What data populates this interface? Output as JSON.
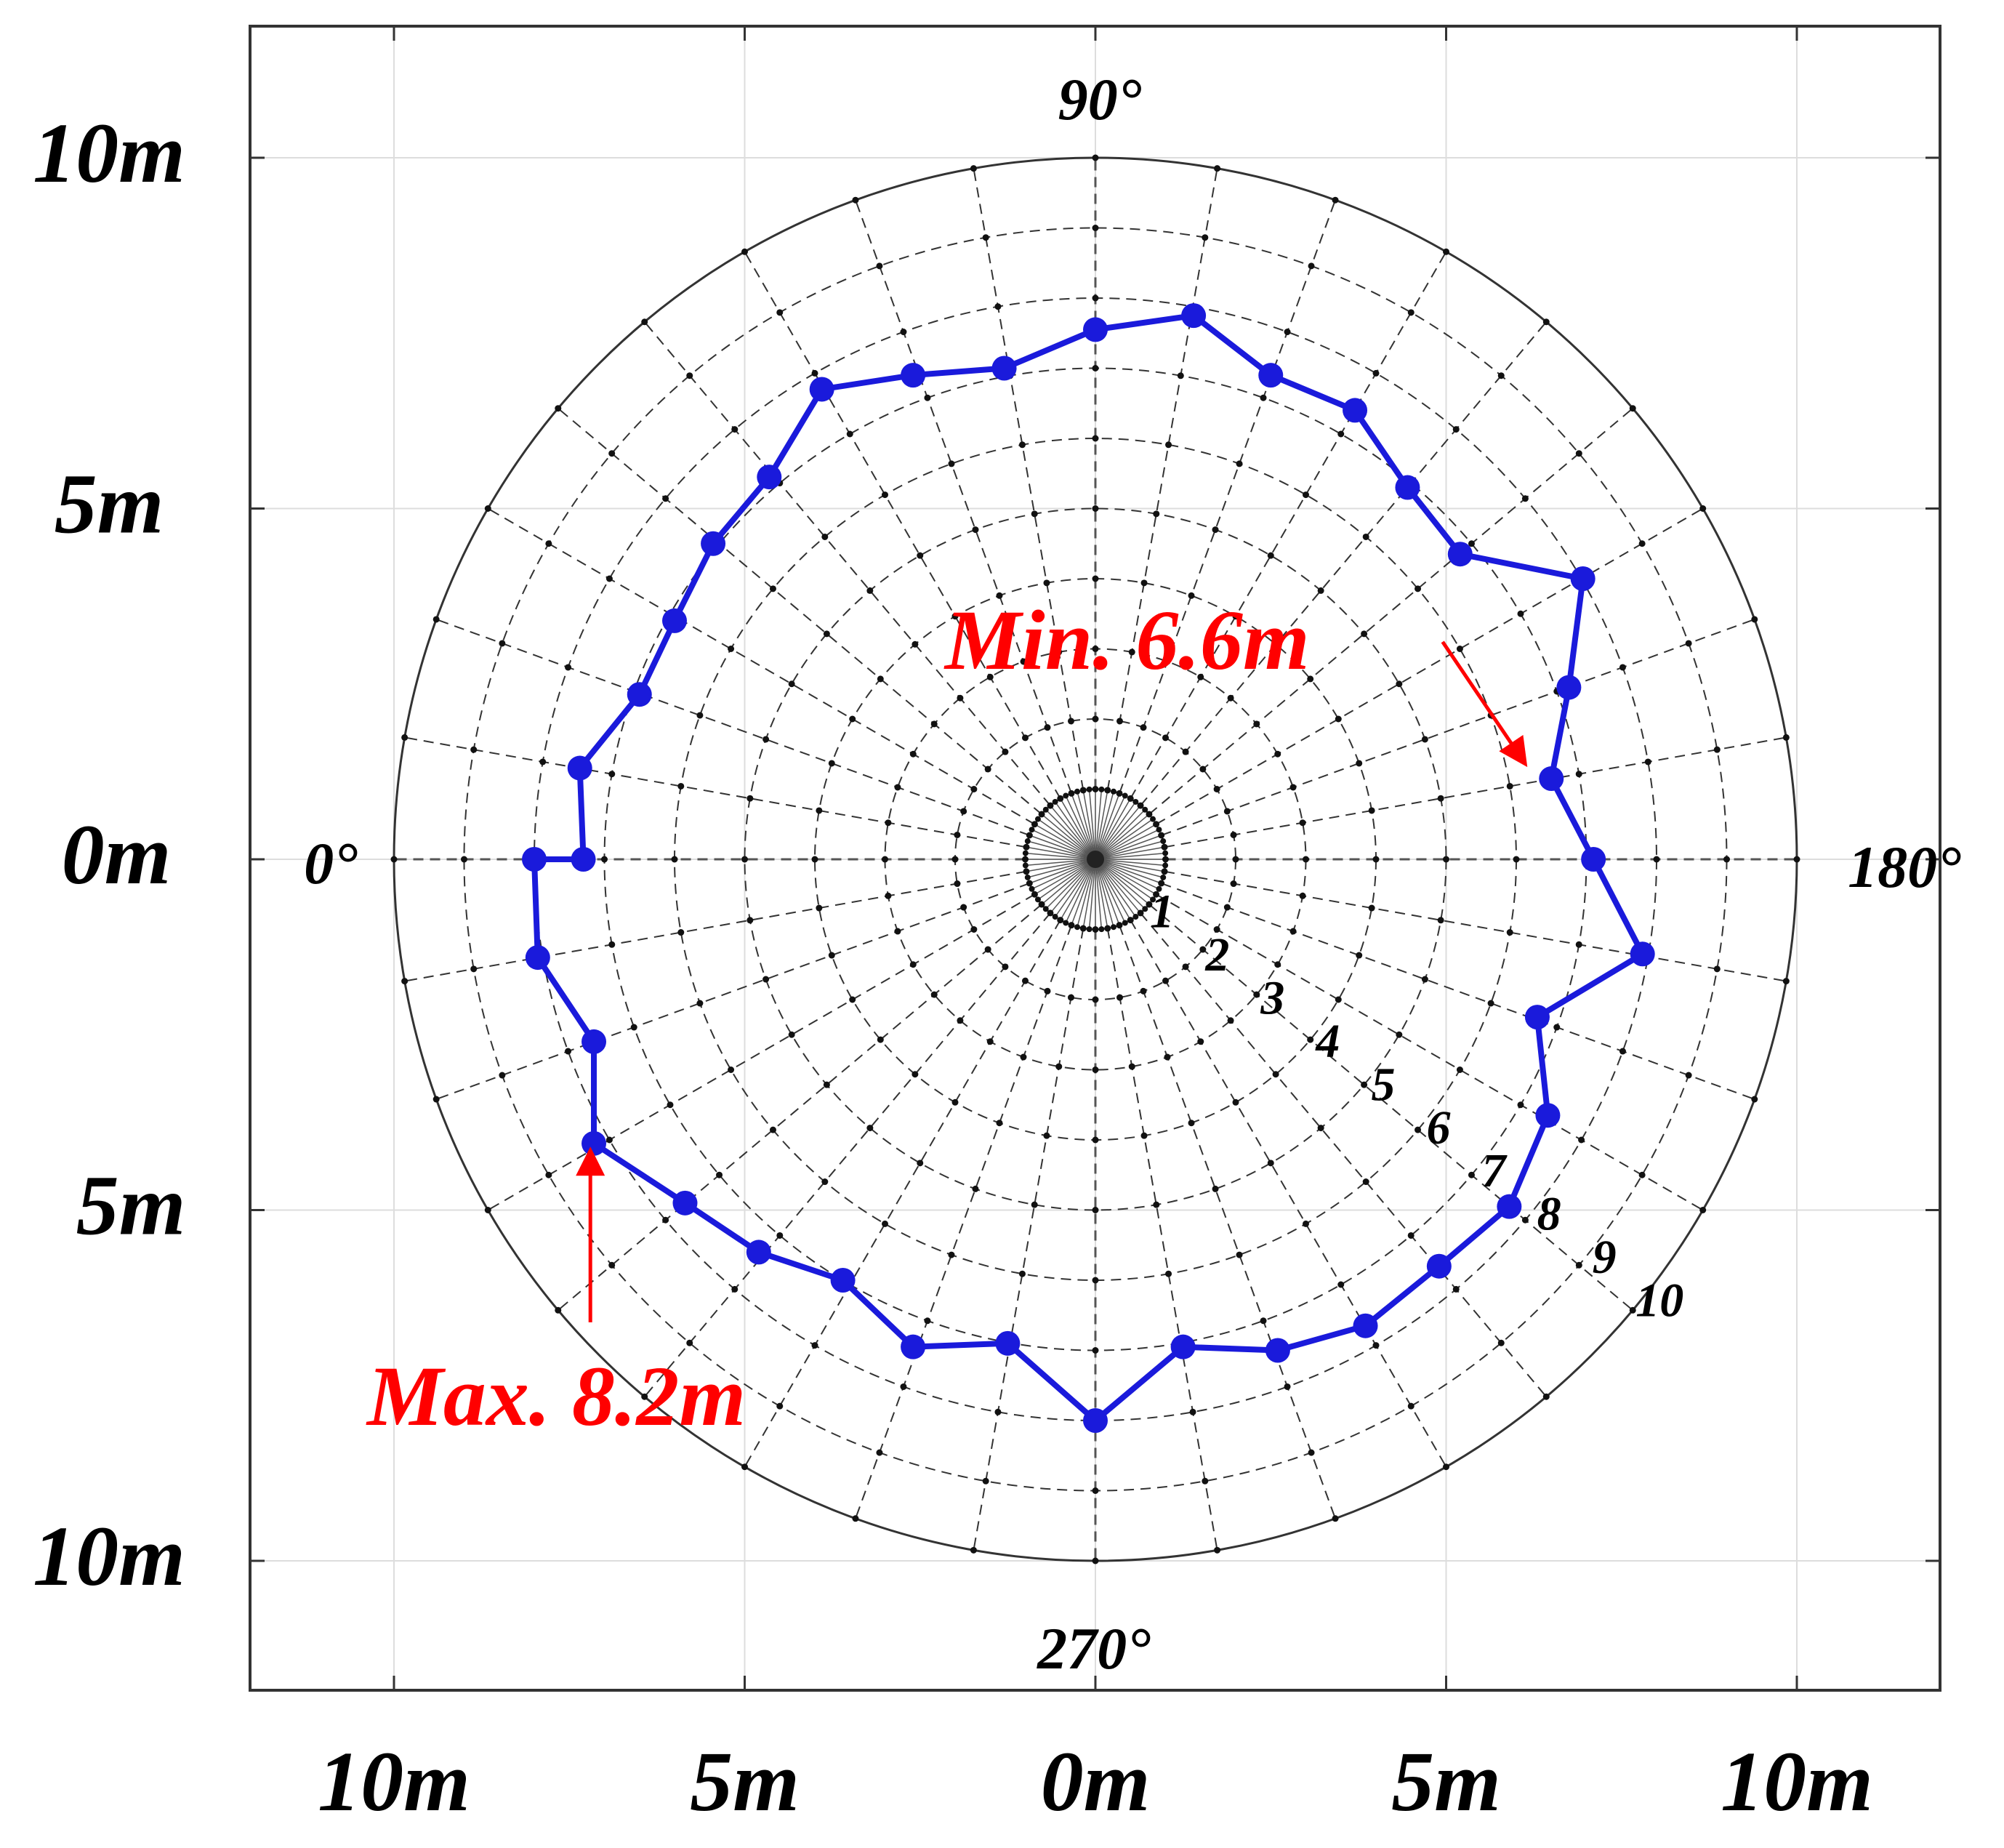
{
  "chart_data": {
    "type": "polar-line",
    "x_tick_labels": [
      "10m",
      "5m",
      "0m",
      "5m",
      "10m"
    ],
    "y_tick_labels": [
      "10m",
      "5m",
      "0m",
      "5m",
      "10m"
    ],
    "angle_labels": [
      "0°",
      "90°",
      "180°",
      "270°"
    ],
    "ring_labels": [
      "1",
      "2",
      "3",
      "4",
      "5",
      "6",
      "7",
      "8",
      "9",
      "10"
    ],
    "rlim": [
      0,
      10
    ],
    "angular_step_deg": 10,
    "grid": true,
    "series_color": "#1a1adb",
    "points": [
      {
        "x": -8.0,
        "y": 0.0
      },
      {
        "x": -7.3,
        "y": 0.0
      },
      {
        "x": -7.35,
        "y": 1.3
      },
      {
        "x": -6.5,
        "y": 2.35
      },
      {
        "x": -6.0,
        "y": 3.4
      },
      {
        "x": -5.45,
        "y": 4.5
      },
      {
        "x": -4.65,
        "y": 5.45
      },
      {
        "x": -3.9,
        "y": 6.7
      },
      {
        "x": -2.6,
        "y": 6.9
      },
      {
        "x": -1.3,
        "y": 7.0
      },
      {
        "x": 0.0,
        "y": 7.55
      },
      {
        "x": 1.4,
        "y": 7.75
      },
      {
        "x": 2.5,
        "y": 6.9
      },
      {
        "x": 3.7,
        "y": 6.4
      },
      {
        "x": 4.45,
        "y": 5.3
      },
      {
        "x": 5.2,
        "y": 4.35
      },
      {
        "x": 6.95,
        "y": 4.0
      },
      {
        "x": 6.75,
        "y": 2.45
      },
      {
        "x": 6.5,
        "y": 1.15
      },
      {
        "x": 7.1,
        "y": 0.0
      },
      {
        "x": 7.8,
        "y": -1.35
      },
      {
        "x": 6.3,
        "y": -2.25
      },
      {
        "x": 6.45,
        "y": -3.65
      },
      {
        "x": 5.9,
        "y": -4.95
      },
      {
        "x": 4.9,
        "y": -5.8
      },
      {
        "x": 3.85,
        "y": -6.65
      },
      {
        "x": 2.6,
        "y": -7.0
      },
      {
        "x": 1.25,
        "y": -6.95
      },
      {
        "x": 0.0,
        "y": -8.0
      },
      {
        "x": -1.25,
        "y": -6.9
      },
      {
        "x": -2.6,
        "y": -6.95
      },
      {
        "x": -3.6,
        "y": -6.0
      },
      {
        "x": -4.8,
        "y": -5.6
      },
      {
        "x": -5.85,
        "y": -4.9
      },
      {
        "x": -7.15,
        "y": -4.05
      },
      {
        "x": -7.15,
        "y": -2.6
      },
      {
        "x": -7.95,
        "y": -1.4
      }
    ],
    "annotations": [
      {
        "text": "Min. 6.6m",
        "color": "#ff0000",
        "points_to": {
          "x": 6.1,
          "y": 1.4
        },
        "arrow_from": {
          "x": 4.95,
          "y": 3.1
        }
      },
      {
        "text": "Max. 8.2m",
        "color": "#ff0000",
        "points_to": {
          "x": -7.2,
          "y": -4.2
        },
        "arrow_from": {
          "x": -7.2,
          "y": -6.6
        }
      }
    ]
  }
}
